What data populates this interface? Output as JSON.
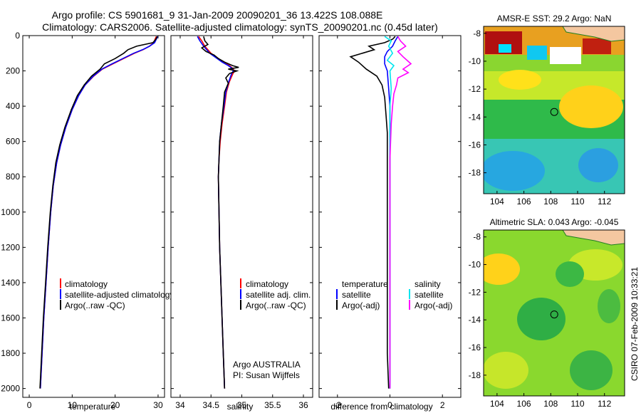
{
  "titles": {
    "line1": "Argo profile: CS 5901681_9 31-Jan-2009 20090201_36 13.422S 108.088E",
    "line2": "Climatology: CARS2006. Satellite-adjusted climatology: synTS_20090201.nc (0.45d later)"
  },
  "colors": {
    "climatology": "#ff0000",
    "satellite": "#0000ff",
    "argo": "#000000",
    "satellite_diff": "#00e5ee",
    "argo_adj": "#ff00ff",
    "ocean_map": "#66cc33",
    "land": "#f4c7a0"
  },
  "chart_data": [
    {
      "type": "line",
      "xlabel": "temperature",
      "xlim": [
        -1.5,
        31.5
      ],
      "ylim": [
        2050,
        0
      ],
      "x_ticks": [
        0,
        10,
        20,
        30
      ],
      "y_ticks": [
        0,
        200,
        400,
        600,
        800,
        1000,
        1200,
        1400,
        1600,
        1800,
        2000
      ],
      "legend": [
        "climatology",
        "satellite-adjusted climatology",
        "Argo(..raw -QC)"
      ],
      "series": [
        {
          "name": "climatology",
          "color": "#ff0000",
          "points": [
            [
              29.6,
              5
            ],
            [
              29.3,
              20
            ],
            [
              29.0,
              40
            ],
            [
              28.0,
              60
            ],
            [
              26.5,
              80
            ],
            [
              24.5,
              100
            ],
            [
              22.0,
              130
            ],
            [
              19.5,
              160
            ],
            [
              17.0,
              190
            ],
            [
              15.0,
              230
            ],
            [
              13.0,
              280
            ],
            [
              11.5,
              340
            ],
            [
              10.0,
              420
            ],
            [
              8.5,
              520
            ],
            [
              7.3,
              620
            ],
            [
              6.4,
              720
            ],
            [
              5.6,
              850
            ],
            [
              5.0,
              1000
            ],
            [
              4.4,
              1200
            ],
            [
              3.9,
              1400
            ],
            [
              3.4,
              1600
            ],
            [
              3.0,
              1800
            ],
            [
              2.6,
              2000
            ]
          ]
        },
        {
          "name": "satellite-adjusted climatology",
          "color": "#0000ff",
          "points": [
            [
              29.9,
              5
            ],
            [
              29.6,
              20
            ],
            [
              29.2,
              40
            ],
            [
              28.0,
              60
            ],
            [
              26.4,
              80
            ],
            [
              24.3,
              100
            ],
            [
              21.8,
              130
            ],
            [
              19.3,
              160
            ],
            [
              16.9,
              190
            ],
            [
              14.9,
              230
            ],
            [
              13.0,
              280
            ],
            [
              11.5,
              340
            ],
            [
              10.0,
              420
            ],
            [
              8.5,
              520
            ],
            [
              7.3,
              620
            ],
            [
              6.4,
              720
            ],
            [
              5.6,
              850
            ],
            [
              5.0,
              1000
            ],
            [
              4.4,
              1200
            ],
            [
              3.9,
              1400
            ],
            [
              3.4,
              1600
            ],
            [
              3.0,
              1800
            ],
            [
              2.6,
              2000
            ]
          ]
        },
        {
          "name": "Argo(..raw -QC)",
          "color": "#000000",
          "points": [
            [
              29.8,
              5
            ],
            [
              29.5,
              20
            ],
            [
              28.8,
              40
            ],
            [
              25.0,
              60
            ],
            [
              23.0,
              80
            ],
            [
              22.0,
              100
            ],
            [
              20.0,
              130
            ],
            [
              17.5,
              160
            ],
            [
              16.5,
              190
            ],
            [
              14.5,
              230
            ],
            [
              12.8,
              280
            ],
            [
              11.2,
              340
            ],
            [
              9.8,
              420
            ],
            [
              8.3,
              520
            ],
            [
              7.1,
              620
            ],
            [
              6.2,
              720
            ],
            [
              5.5,
              850
            ],
            [
              4.9,
              1000
            ],
            [
              4.3,
              1200
            ],
            [
              3.8,
              1400
            ],
            [
              3.3,
              1600
            ],
            [
              2.9,
              1800
            ],
            [
              2.5,
              2000
            ]
          ]
        }
      ]
    },
    {
      "type": "line",
      "xlabel": "salinity",
      "xlim": [
        33.85,
        36.15
      ],
      "ylim": [
        2050,
        0
      ],
      "x_ticks": [
        34,
        34.5,
        35,
        35.5,
        36
      ],
      "legend": [
        "climatology",
        "satellite adj. clim.",
        "Argo(..raw -QC)"
      ],
      "annotation": [
        "Argo AUSTRALIA",
        "PI: Susan Wijffels"
      ],
      "series": [
        {
          "name": "climatology",
          "color": "#ff0000",
          "points": [
            [
              34.3,
              5
            ],
            [
              34.35,
              30
            ],
            [
              34.4,
              60
            ],
            [
              34.5,
              100
            ],
            [
              34.62,
              130
            ],
            [
              34.7,
              150
            ],
            [
              34.8,
              170
            ],
            [
              34.85,
              185
            ],
            [
              34.88,
              200
            ],
            [
              34.85,
              220
            ],
            [
              34.8,
              260
            ],
            [
              34.75,
              320
            ],
            [
              34.72,
              400
            ],
            [
              34.68,
              500
            ],
            [
              34.65,
              600
            ],
            [
              34.63,
              700
            ],
            [
              34.62,
              800
            ],
            [
              34.63,
              1000
            ],
            [
              34.64,
              1200
            ],
            [
              34.66,
              1400
            ],
            [
              34.68,
              1600
            ],
            [
              34.7,
              1800
            ],
            [
              34.72,
              2000
            ]
          ]
        },
        {
          "name": "satellite adj. clim.",
          "color": "#0000ff",
          "points": [
            [
              34.28,
              5
            ],
            [
              34.32,
              30
            ],
            [
              34.38,
              60
            ],
            [
              34.48,
              100
            ],
            [
              34.6,
              130
            ],
            [
              34.68,
              150
            ],
            [
              34.78,
              170
            ],
            [
              34.84,
              185
            ],
            [
              34.86,
              200
            ],
            [
              34.83,
              220
            ],
            [
              34.79,
              260
            ],
            [
              34.74,
              320
            ],
            [
              34.71,
              400
            ],
            [
              34.67,
              500
            ],
            [
              34.64,
              600
            ],
            [
              34.63,
              700
            ],
            [
              34.62,
              800
            ],
            [
              34.63,
              1000
            ],
            [
              34.64,
              1200
            ],
            [
              34.66,
              1400
            ],
            [
              34.68,
              1600
            ],
            [
              34.7,
              1800
            ],
            [
              34.72,
              2000
            ]
          ]
        },
        {
          "name": "Argo(..raw -QC)",
          "color": "#000000",
          "points": [
            [
              34.38,
              5
            ],
            [
              34.4,
              30
            ],
            [
              34.45,
              50
            ],
            [
              34.35,
              70
            ],
            [
              34.42,
              90
            ],
            [
              34.55,
              110
            ],
            [
              34.62,
              130
            ],
            [
              34.72,
              150
            ],
            [
              34.85,
              170
            ],
            [
              34.95,
              180
            ],
            [
              34.78,
              190
            ],
            [
              34.92,
              200
            ],
            [
              34.8,
              215
            ],
            [
              34.74,
              240
            ],
            [
              34.78,
              270
            ],
            [
              34.72,
              320
            ],
            [
              34.7,
              400
            ],
            [
              34.67,
              500
            ],
            [
              34.64,
              600
            ],
            [
              34.63,
              700
            ],
            [
              34.62,
              800
            ],
            [
              34.63,
              1000
            ],
            [
              34.64,
              1200
            ],
            [
              34.66,
              1400
            ],
            [
              34.68,
              1600
            ],
            [
              34.7,
              1800
            ],
            [
              34.72,
              2000
            ]
          ]
        }
      ]
    },
    {
      "type": "line",
      "xlabel": "difference from climatology",
      "xlim": [
        -2.7,
        2.7
      ],
      "ylim": [
        2050,
        0
      ],
      "x_ticks": [
        -2,
        0,
        2
      ],
      "legend_left": [
        "temperature",
        "satellite",
        "Argo(-adj)"
      ],
      "legend_right": [
        "salinity",
        "satellite",
        "Argo(-adj)"
      ],
      "series": [
        {
          "name": "satellite",
          "group": "temperature",
          "color": "#0000ff",
          "points": [
            [
              0.3,
              5
            ],
            [
              0.2,
              30
            ],
            [
              0.1,
              60
            ],
            [
              -0.1,
              90
            ],
            [
              -0.2,
              120
            ],
            [
              -0.2,
              160
            ],
            [
              -0.1,
              200
            ],
            [
              -0.05,
              300
            ],
            [
              0.0,
              400
            ],
            [
              0.0,
              600
            ],
            [
              0.0,
              1000
            ],
            [
              0.0,
              1600
            ],
            [
              0.0,
              2000
            ]
          ]
        },
        {
          "name": "Argo(-adj)",
          "group": "temperature",
          "color": "#000000",
          "points": [
            [
              0.2,
              5
            ],
            [
              0.1,
              20
            ],
            [
              -0.2,
              40
            ],
            [
              -0.8,
              60
            ],
            [
              -0.6,
              80
            ],
            [
              -1.5,
              120
            ],
            [
              -1.2,
              150
            ],
            [
              -0.9,
              190
            ],
            [
              -0.5,
              230
            ],
            [
              -0.3,
              280
            ],
            [
              -0.2,
              350
            ],
            [
              -0.15,
              450
            ],
            [
              -0.1,
              550
            ],
            [
              -0.1,
              700
            ],
            [
              -0.1,
              900
            ],
            [
              -0.1,
              1200
            ],
            [
              -0.1,
              1500
            ],
            [
              -0.1,
              1800
            ],
            [
              -0.05,
              2000
            ]
          ]
        },
        {
          "name": "satellite",
          "group": "salinity",
          "color": "#00e5ee",
          "points": [
            [
              -0.2,
              5
            ],
            [
              0.05,
              30
            ],
            [
              -0.05,
              60
            ],
            [
              0.1,
              100
            ],
            [
              -0.1,
              140
            ],
            [
              0.15,
              170
            ],
            [
              0.0,
              200
            ],
            [
              0.05,
              300
            ],
            [
              0.0,
              400
            ],
            [
              0.0,
              600
            ],
            [
              0.0,
              1000
            ],
            [
              0.0,
              1600
            ],
            [
              0.0,
              2000
            ]
          ]
        },
        {
          "name": "Argo(-adj)",
          "group": "salinity",
          "color": "#ff00ff",
          "points": [
            [
              0.3,
              5
            ],
            [
              0.4,
              30
            ],
            [
              0.6,
              60
            ],
            [
              0.3,
              90
            ],
            [
              0.5,
              120
            ],
            [
              0.8,
              160
            ],
            [
              0.5,
              190
            ],
            [
              0.7,
              210
            ],
            [
              0.3,
              240
            ],
            [
              0.25,
              280
            ],
            [
              0.15,
              330
            ],
            [
              0.1,
              400
            ],
            [
              0.05,
              500
            ],
            [
              0.0,
              700
            ],
            [
              0.0,
              1000
            ],
            [
              0.0,
              1500
            ],
            [
              0.0,
              2000
            ]
          ]
        }
      ]
    },
    {
      "type": "heatmap",
      "title": "AMSR-E SST: 29.2 Argo: NaN",
      "xlim": [
        103,
        113.5
      ],
      "ylim": [
        -19.5,
        -7.5
      ],
      "x_ticks": [
        104,
        106,
        108,
        110,
        112
      ],
      "y_ticks": [
        -8,
        -10,
        -12,
        -14,
        -16,
        -18
      ],
      "float_position": [
        108.088,
        -13.422
      ]
    },
    {
      "type": "heatmap",
      "title": "Altimetric SLA: 0.043 Argo: -0.045",
      "xlim": [
        103,
        113.5
      ],
      "ylim": [
        -19.5,
        -7.5
      ],
      "x_ticks": [
        104,
        106,
        108,
        110,
        112
      ],
      "y_ticks": [
        -8,
        -10,
        -12,
        -14,
        -16,
        -18
      ],
      "float_position": [
        108.088,
        -13.422
      ]
    }
  ],
  "credit": "CSIRO 07-Feb-2009 10:33:21"
}
